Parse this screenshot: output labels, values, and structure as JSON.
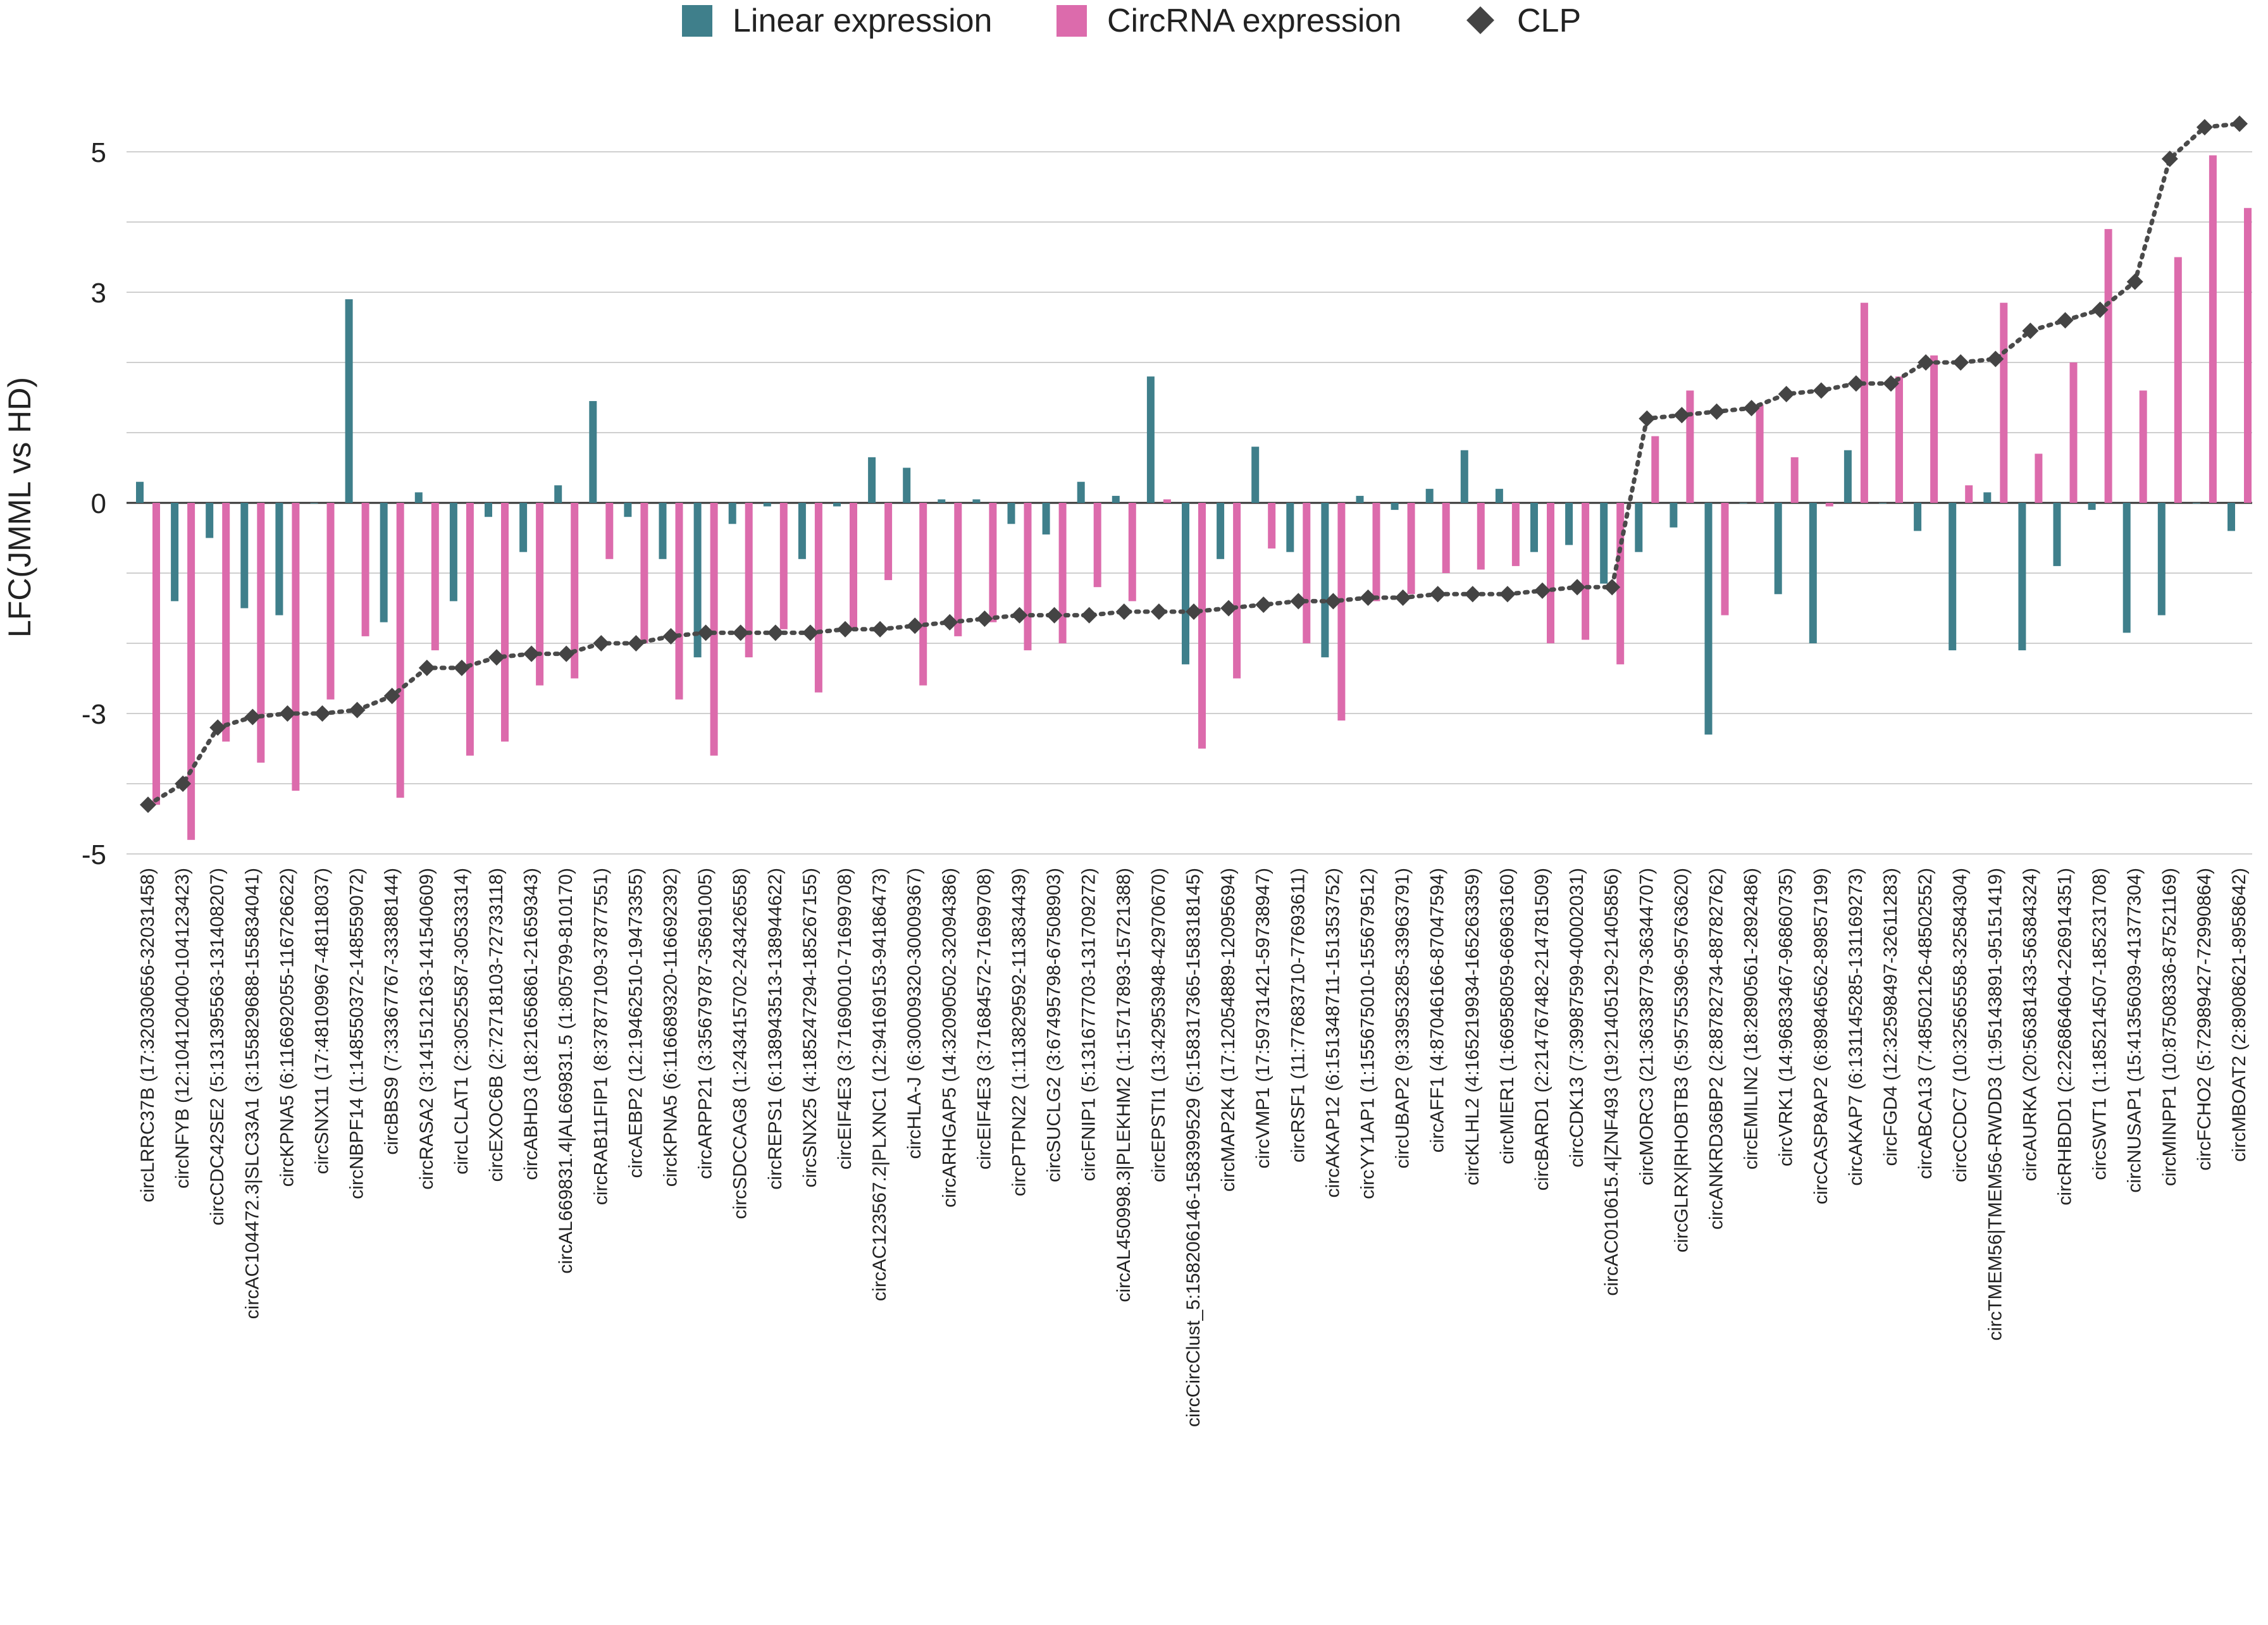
{
  "chart_data": {
    "type": "bar",
    "title": "",
    "xlabel": "",
    "ylabel": "LFC(JMML vs HD)",
    "ylim": [
      -5,
      5
    ],
    "yticks": [
      5,
      3,
      0,
      -3,
      -5
    ],
    "grid": true,
    "legend_position": "top-center",
    "legend": [
      {
        "label": "Linear expression",
        "marker": "square",
        "color": "#3f7f8b"
      },
      {
        "label": "CircRNA expression",
        "marker": "square",
        "color": "#dc6bac"
      },
      {
        "label": "CLP",
        "marker": "diamond",
        "color": "#444444"
      }
    ],
    "categories": [
      "circLRRC37B (17:32030656-32031458)",
      "circNFYB (12:104120400-104123423)",
      "circCDC42SE2 (5:131395563-131408207)",
      "circAC104472.3|SLC33A1 (3:155829688-155834041)",
      "circKPNA5 (6:116692055-116726622)",
      "circSNX11 (17:48109967-48118037)",
      "circNBPF14 (1:148550372-148559072)",
      "circBBS9 (7:33367767-33388144)",
      "circRASA2 (3:141512163-141540609)",
      "circLCLAT1 (2:30525587-30533314)",
      "circEXOC6B (2:72718103-72733118)",
      "circABHD3 (18:21656861-21659343)",
      "circAL669831.4|AL669831.5 (1:805799-810170)",
      "circRAB11FIP1 (8:37877109-37877551)",
      "circAEBP2 (12:19462510-19473355)",
      "circKPNA5 (6:116689320-116692392)",
      "circARPP21 (3:35679787-35691005)",
      "circSDCCAG8 (1:243415702-243426558)",
      "circREPS1 (6:138943513-138944622)",
      "circSNX25 (4:185247294-185267155)",
      "circEIF4E3 (3:71690010-71699708)",
      "circAC123567.2|PLXNC1 (12:94169153-94186473)",
      "circHLA-J (6:30009320-30009367)",
      "circARHGAP5 (14:32090502-32094386)",
      "circEIF4E3 (3:71684572-71699708)",
      "circPTPN22 (1:113829592-113834439)",
      "circSUCLG2 (3:67495798-67508903)",
      "circFNIP1 (5:131677703-131709272)",
      "circAL450998.3|PLEKHM2 (1:15717893-15721388)",
      "circEPSTI1 (13:42953948-42970670)",
      "circCircClust_5:158206146-158399529 (5:158317365-158318145)",
      "circMAP2K4 (17:12054889-12095694)",
      "circVMP1 (17:59731421-59738947)",
      "circRSF1 (11:77683710-77693611)",
      "circAKAP12 (6:151348711-151353752)",
      "circYY1AP1 (1:155675010-155679512)",
      "circUBAP2 (9:33953285-33963791)",
      "circAFF1 (4:87046166-87047594)",
      "circKLHL2 (4:165219934-165263359)",
      "circMIER1 (1:66958059-66963160)",
      "circBARD1 (2:214767482-214781509)",
      "circCDK13 (7:39987599-40002031)",
      "circAC010615.4|ZNF493 (19:21405129-21405856)",
      "circMORC3 (21:36338779-36344707)",
      "circGLRX|RHOBTB3 (5:95755396-95763620)",
      "circANKRD36BP2 (2:88782734-88782762)",
      "circEMILIN2 (18:2890561-2892486)",
      "circVRK1 (14:96833467-96860735)",
      "circCASP8AP2 (6:89846562-89857199)",
      "circAKAP7 (6:131145285-131169273)",
      "circFGD4 (12:32598497-32611283)",
      "circABCA13 (7:48502126-48502552)",
      "circCCDC7 (10:32565558-32584304)",
      "circTMEM56|TMEM56-RWDD3 (1:95143891-95151419)",
      "circAURKA (20:56381433-56384324)",
      "circRHBDD1 (2:226864604-226914351)",
      "circSWT1 (1:185214507-185231708)",
      "circNUSAP1 (15:41356039-41377304)",
      "circMINPP1 (10:87508336-87521169)",
      "circFCHO2 (5:72989427-72990864)",
      "circMBOAT2 (2:8908621-8958642)"
    ],
    "series": [
      {
        "name": "Linear expression",
        "values": [
          0.3,
          -1.4,
          -0.5,
          -1.5,
          -1.6,
          0.0,
          2.9,
          -1.7,
          0.15,
          -1.4,
          -0.2,
          -0.7,
          0.25,
          1.45,
          -0.2,
          -0.8,
          -2.2,
          -0.3,
          -0.05,
          -0.8,
          -0.05,
          0.65,
          0.5,
          0.05,
          0.05,
          -0.3,
          -0.45,
          0.3,
          0.1,
          1.8,
          -2.3,
          -0.8,
          0.8,
          -0.7,
          -2.2,
          0.1,
          -0.1,
          0.2,
          0.75,
          0.2,
          -0.7,
          -0.6,
          -1.15,
          -0.7,
          -0.35,
          -3.3,
          0.0,
          -1.3,
          -2.0,
          0.75,
          0.0,
          -0.4,
          -2.1,
          0.15,
          -2.1,
          -0.9,
          -0.1,
          -1.85,
          -1.6,
          0.0,
          -0.4
        ]
      },
      {
        "name": "CircRNA expression",
        "values": [
          -4.3,
          -4.8,
          -3.4,
          -3.7,
          -4.1,
          -2.8,
          -1.9,
          -4.2,
          -2.1,
          -3.6,
          -3.4,
          -2.6,
          -2.5,
          -0.8,
          -2.0,
          -2.8,
          -3.6,
          -2.2,
          -1.8,
          -2.7,
          -1.8,
          -1.1,
          -2.6,
          -1.9,
          -1.7,
          -2.1,
          -2.0,
          -1.2,
          -1.4,
          0.05,
          -3.5,
          -2.5,
          -0.65,
          -2.0,
          -3.1,
          -1.4,
          -1.3,
          -1.0,
          -0.95,
          -0.9,
          -2.0,
          -1.95,
          -2.3,
          0.95,
          1.6,
          -1.6,
          1.4,
          0.65,
          -0.05,
          2.85,
          1.8,
          2.1,
          0.25,
          2.85,
          0.7,
          2.0,
          3.9,
          1.6,
          3.5,
          4.95,
          4.2
        ]
      },
      {
        "name": "CLP",
        "values": [
          -4.3,
          -4.0,
          -3.2,
          -3.05,
          -3.0,
          -3.0,
          -2.95,
          -2.75,
          -2.35,
          -2.35,
          -2.2,
          -2.15,
          -2.15,
          -2.0,
          -2.0,
          -1.9,
          -1.85,
          -1.85,
          -1.85,
          -1.85,
          -1.8,
          -1.8,
          -1.75,
          -1.7,
          -1.65,
          -1.6,
          -1.6,
          -1.6,
          -1.55,
          -1.55,
          -1.55,
          -1.5,
          -1.45,
          -1.4,
          -1.4,
          -1.35,
          -1.35,
          -1.3,
          -1.3,
          -1.3,
          -1.25,
          -1.2,
          -1.2,
          1.2,
          1.25,
          1.3,
          1.35,
          1.55,
          1.6,
          1.7,
          1.7,
          2.0,
          2.0,
          2.05,
          2.45,
          2.6,
          2.75,
          3.15,
          4.9,
          5.35,
          5.4
        ]
      }
    ]
  }
}
